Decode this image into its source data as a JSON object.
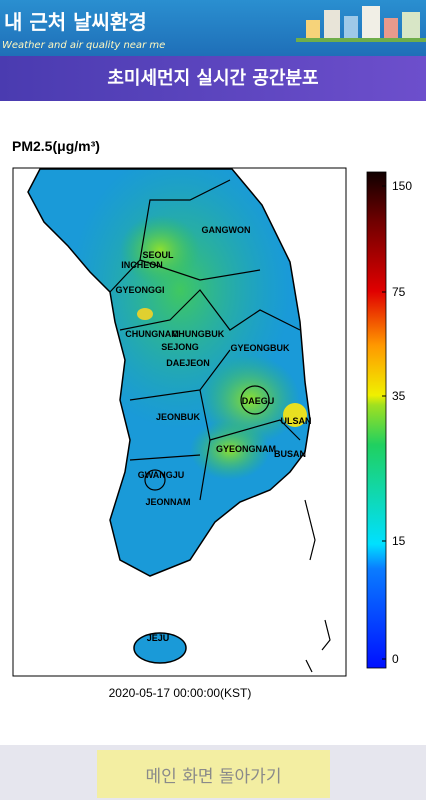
{
  "header": {
    "title": "내 근처 날씨환경",
    "subtitle": "Weather and air quality near me"
  },
  "banner": {
    "title": "초미세먼지 실시간 공간분포"
  },
  "map": {
    "unit_label": "PM2.5(μg/m³)",
    "regions": [
      {
        "label": "GANGWON"
      },
      {
        "label": "SEOUL"
      },
      {
        "label": "INCHEON"
      },
      {
        "label": "GYEONGGI"
      },
      {
        "label": "CHUNGNAM"
      },
      {
        "label": "CHUNGBUK"
      },
      {
        "label": "SEJONG"
      },
      {
        "label": "DAEJEON"
      },
      {
        "label": "GYEONGBUK"
      },
      {
        "label": "DAEGU"
      },
      {
        "label": "ULSAN"
      },
      {
        "label": "JEONBUK"
      },
      {
        "label": "GYEONGNAM"
      },
      {
        "label": "BUSAN"
      },
      {
        "label": "GWANGJU"
      },
      {
        "label": "JEONNAM"
      },
      {
        "label": "JEJU"
      }
    ],
    "colorbar_ticks": [
      150,
      75,
      35,
      15,
      0
    ],
    "timestamp": "2020-05-17 00:00:00(KST)"
  },
  "button": {
    "label": "메인 화면 돌아가기"
  }
}
